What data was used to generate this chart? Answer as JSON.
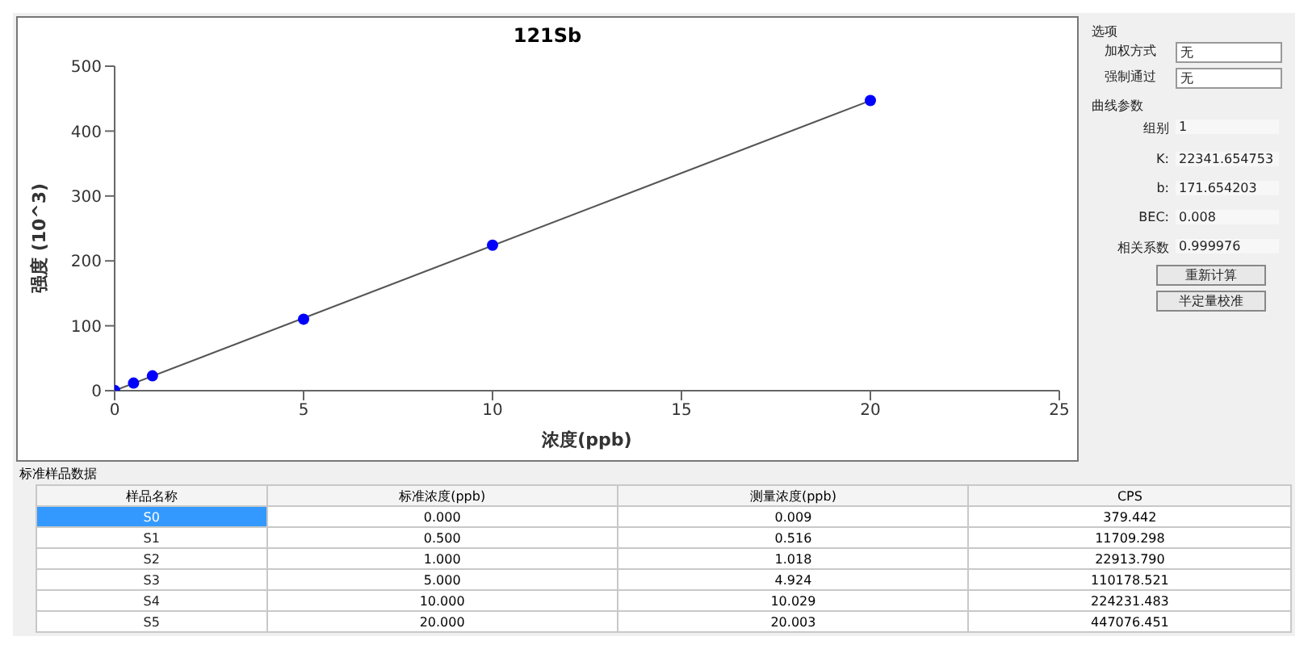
{
  "chart_data": {
    "type": "scatter",
    "title": "121Sb",
    "xlabel": "浓度(ppb)",
    "ylabel": "强度 (10^3)",
    "xlim": [
      0,
      25
    ],
    "xticks": [
      0,
      5,
      10,
      15,
      20,
      25
    ],
    "ylim": [
      0,
      500
    ],
    "yticks": [
      0,
      100,
      200,
      300,
      400,
      500
    ],
    "grid": false,
    "series": [
      {
        "type": "line",
        "marker": "none",
        "color": "#555555",
        "x": [
          0,
          20
        ],
        "values": [
          0.2,
          447.0
        ]
      },
      {
        "marker": "circle",
        "color": "#0000ff",
        "x": [
          0,
          0.5,
          1,
          5,
          10,
          20
        ],
        "values": [
          0.4,
          11.7,
          22.9,
          110.2,
          224.2,
          447.1
        ]
      }
    ],
    "annotations": [
      "选项",
      "加权方式",
      "无",
      "强制通过",
      "无",
      "曲线参数",
      "组别",
      "1",
      "K:",
      "22341.654753",
      "b:",
      "171.654203",
      "BEC:",
      "0.008",
      "相关系数",
      "0.999976",
      "重新计算",
      "半定量校准",
      "标准样品数据",
      "样品名称",
      "标准浓度(ppb)",
      "测量浓度(ppb)",
      "CPS",
      "S0",
      "0.000",
      "0.009",
      "379.442",
      "S1",
      "0.500",
      "0.516",
      "11709.298",
      "S2",
      "1.000",
      "1.018",
      "22913.790",
      "S3",
      "5.000",
      "4.924",
      "110178.521",
      "S4",
      "10.000",
      "10.029",
      "224231.483",
      "S5",
      "20.000",
      "20.003",
      "447076.451"
    ]
  }
}
